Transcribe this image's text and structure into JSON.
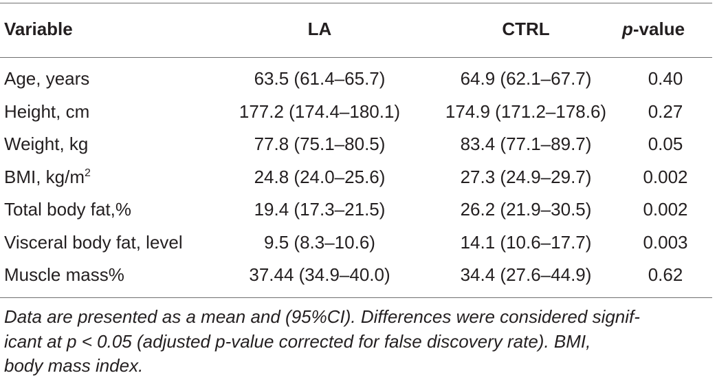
{
  "table": {
    "headers": {
      "variable": "Variable",
      "la": "LA",
      "ctrl": "CTRL",
      "pvalue_italic": "p",
      "pvalue_rest": "-value"
    },
    "rows": [
      {
        "variable": "Age, years",
        "sup": "",
        "la": "63.5 (61.4–65.7)",
        "ctrl": "64.9 (62.1–67.7)",
        "p": "0.40"
      },
      {
        "variable": "Height, cm",
        "sup": "",
        "la": "177.2 (174.4–180.1)",
        "ctrl": "174.9 (171.2–178.6)",
        "p": "0.27"
      },
      {
        "variable": "Weight, kg",
        "sup": "",
        "la": "77.8 (75.1–80.5)",
        "ctrl": "83.4 (77.1–89.7)",
        "p": "0.05"
      },
      {
        "variable": "BMI, kg/m",
        "sup": "2",
        "la": "24.8 (24.0–25.6)",
        "ctrl": "27.3 (24.9–29.7)",
        "p": "0.002"
      },
      {
        "variable": "Total body fat,%",
        "sup": "",
        "la": "19.4 (17.3–21.5)",
        "ctrl": "26.2 (21.9–30.5)",
        "p": "0.002"
      },
      {
        "variable": "Visceral body fat, level",
        "sup": "",
        "la": "9.5 (8.3–10.6)",
        "ctrl": "14.1 (10.6–17.7)",
        "p": "0.003"
      },
      {
        "variable": "Muscle mass%",
        "sup": "",
        "la": "37.44 (34.9–40.0)",
        "ctrl": "34.4 (27.6–44.9)",
        "p": "0.62"
      }
    ],
    "footnote": {
      "line1": "Data are presented as a mean and (95%CI). Differences were considered signif-",
      "line2": "icant at p < 0.05 (adjusted p-value corrected for false discovery rate). BMI,",
      "line3": "body mass index."
    }
  }
}
